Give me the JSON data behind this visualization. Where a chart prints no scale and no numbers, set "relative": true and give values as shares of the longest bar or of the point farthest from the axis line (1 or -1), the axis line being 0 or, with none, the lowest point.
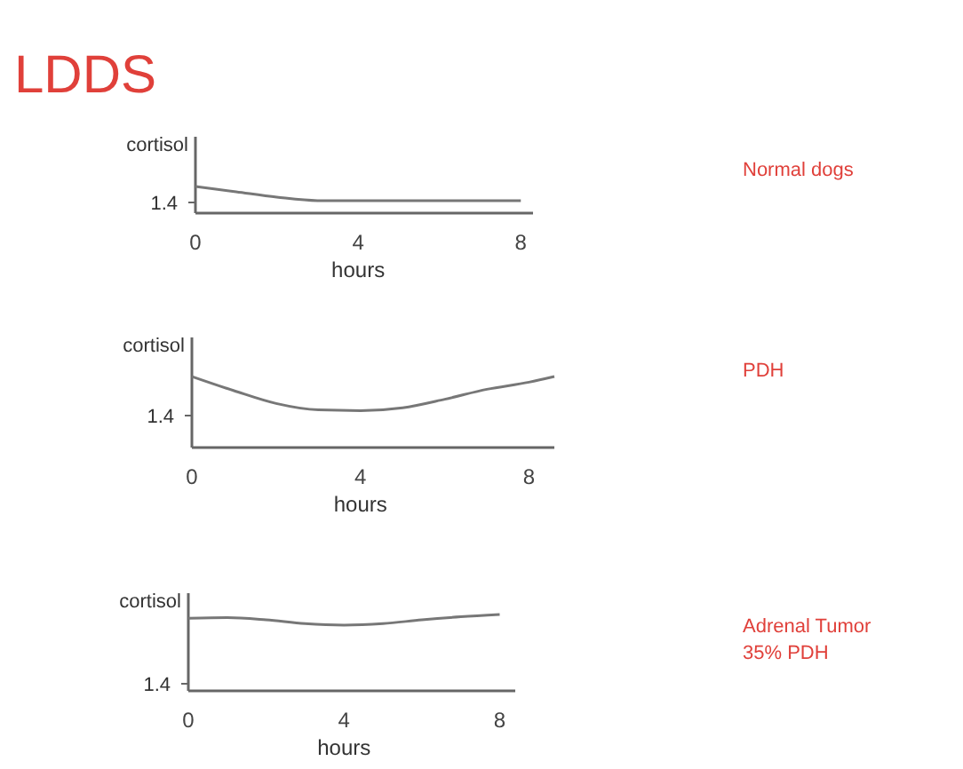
{
  "chart_data": [
    {
      "type": "line",
      "title": "LDDS",
      "xlabel": "hours",
      "ylabel": "cortisol",
      "relative": true,
      "xlim": [
        0,
        8.3
      ],
      "xticks": [
        0,
        4,
        8
      ],
      "series": [
        {
          "color": "#777777",
          "x": [
            0,
            1,
            2,
            3,
            4,
            6,
            8
          ],
          "values": [
            1,
            0.8,
            0.6,
            0.47,
            0.47,
            0.47,
            0.47
          ]
        }
      ],
      "annotations": [
        "1.4",
        "Normal dogs"
      ]
    },
    {
      "type": "line",
      "xlabel": "hours",
      "ylabel": "cortisol",
      "relative": true,
      "xlim": [
        0,
        8.6
      ],
      "xticks": [
        0,
        4,
        8
      ],
      "series": [
        {
          "color": "#777777",
          "x": [
            0,
            1,
            2,
            3,
            4,
            5,
            6,
            7,
            8,
            8.6
          ],
          "values": [
            1,
            0.8,
            0.62,
            0.53,
            0.52,
            0.56,
            0.68,
            0.82,
            0.92,
            1
          ]
        }
      ],
      "annotations": [
        "1.4",
        "PDH"
      ]
    },
    {
      "type": "line",
      "xlabel": "hours",
      "ylabel": "cortisol",
      "relative": true,
      "xlim": [
        0,
        8.4
      ],
      "xticks": [
        0,
        4,
        8
      ],
      "series": [
        {
          "color": "#777777",
          "x": [
            0,
            1,
            2,
            3,
            4,
            5,
            6,
            7,
            8
          ],
          "values": [
            0.95,
            0.96,
            0.93,
            0.88,
            0.86,
            0.88,
            0.93,
            0.97,
            1
          ]
        }
      ],
      "annotations": [
        "1.4",
        "Adrenal Tumor",
        "35% PDH"
      ]
    }
  ]
}
